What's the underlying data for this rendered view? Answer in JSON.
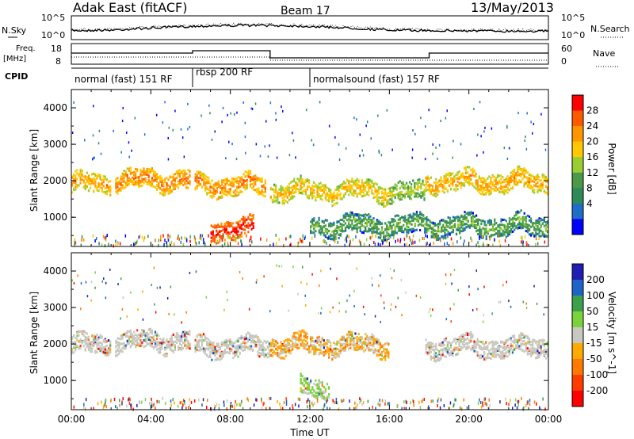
{
  "header": {
    "station": "Adak East (fitACF)",
    "beam": "Beam 17",
    "date": "13/May/2013"
  },
  "top_panels": {
    "nsky_label": "N.Sky",
    "nsearch_label": "N.Search",
    "freq_label_1": "Freq.",
    "freq_label_2": "[MHz]",
    "nave_label": "Nave",
    "cpid_label": "CPID",
    "noise_ticks_left": [
      "10^5",
      "10^0"
    ],
    "noise_ticks_right": [
      "10^5",
      "10^0"
    ],
    "freq_ticks": [
      "18",
      "8"
    ],
    "nave_ticks": [
      "60",
      "0"
    ]
  },
  "cpid_segments": [
    {
      "label": "normal (fast) 151 RF",
      "start_hour": 0,
      "end_hour": 6.1
    },
    {
      "label": "rbsp 200 RF",
      "start_hour": 6.1,
      "end_hour": 12
    },
    {
      "label": "normalsound (fast) 157 RF",
      "start_hour": 12,
      "end_hour": 24
    }
  ],
  "power_colorbar": {
    "label": "Power [dB]",
    "ticks": [
      "28",
      "24",
      "20",
      "16",
      "12",
      "8",
      "4"
    ],
    "colors": [
      "#ff0000",
      "#ff5a00",
      "#ff9600",
      "#ffc800",
      "#9acd32",
      "#4a9a4a",
      "#2e8b57",
      "#1e6ec8",
      "#0000ff"
    ]
  },
  "velocity_colorbar": {
    "label": "Velocity [m s^-1]",
    "ticks": [
      "200",
      "100",
      "50",
      "15",
      "-15",
      "-50",
      "-100",
      "-200"
    ],
    "colors": [
      "#1e1eb4",
      "#1e64c8",
      "#3ca04a",
      "#7ad23c",
      "#c8c8c0",
      "#ffaa00",
      "#ff7800",
      "#ff3c00",
      "#ff0000"
    ]
  },
  "chart_data": [
    {
      "type": "heatmap",
      "title": "",
      "xlabel": "Time UT",
      "ylabel": "Slant Range [km]",
      "x_ticks": [
        "00:00",
        "04:00",
        "08:00",
        "12:00",
        "16:00",
        "20:00",
        "00:00"
      ],
      "y_ticks": [
        "4000",
        "3000",
        "2000",
        "1000"
      ],
      "xlim_hours": [
        0,
        24
      ],
      "ylim_km": [
        200,
        4500
      ],
      "quantity": "Power [dB]",
      "bands": [
        {
          "t0": 0.0,
          "t1": 2.0,
          "range_km": 1950,
          "power_db": 22
        },
        {
          "t0": 2.2,
          "t1": 6.0,
          "range_km": 2050,
          "power_db": 24
        },
        {
          "t0": 6.2,
          "t1": 9.8,
          "range_km": 1900,
          "power_db": 24
        },
        {
          "t0": 7.0,
          "t1": 9.2,
          "range_km": 700,
          "power_db": 30
        },
        {
          "t0": 10.0,
          "t1": 16.0,
          "range_km": 1750,
          "power_db": 20
        },
        {
          "t0": 16.0,
          "t1": 17.8,
          "range_km": 1700,
          "power_db": 16
        },
        {
          "t0": 17.8,
          "t1": 24.0,
          "range_km": 2000,
          "power_db": 22
        },
        {
          "t0": 12.0,
          "t1": 24.0,
          "range_km": 800,
          "power_db": 12
        }
      ]
    },
    {
      "type": "heatmap",
      "title": "",
      "xlabel": "Time UT",
      "ylabel": "Slant Range [km]",
      "x_ticks": [
        "00:00",
        "04:00",
        "08:00",
        "12:00",
        "16:00",
        "20:00",
        "00:00"
      ],
      "y_ticks": [
        "4000",
        "3000",
        "2000",
        "1000"
      ],
      "xlim_hours": [
        0,
        24
      ],
      "ylim_km": [
        200,
        4500
      ],
      "quantity": "Velocity [m s^-1]",
      "bands": [
        {
          "t0": 0.0,
          "t1": 2.0,
          "range_km": 2000,
          "velocity": -10
        },
        {
          "t0": 2.2,
          "t1": 6.0,
          "range_km": 2100,
          "velocity": -20
        },
        {
          "t0": 6.2,
          "t1": 10.0,
          "range_km": 1950,
          "velocity": -10
        },
        {
          "t0": 10.0,
          "t1": 16.0,
          "range_km": 2000,
          "velocity": -40
        },
        {
          "t0": 11.5,
          "t1": 13.0,
          "range_km": 800,
          "velocity": 30
        },
        {
          "t0": 17.8,
          "t1": 24.0,
          "range_km": 1950,
          "velocity": -10
        }
      ]
    }
  ]
}
